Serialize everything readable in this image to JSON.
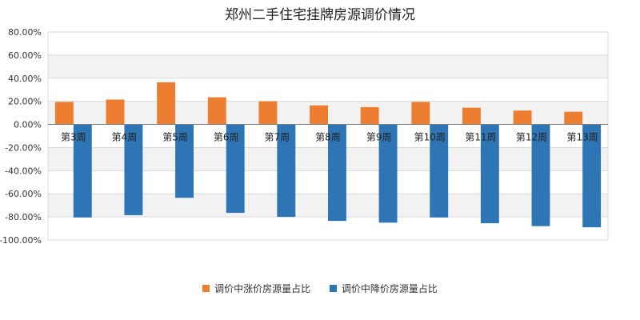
{
  "chart_data": {
    "type": "bar",
    "title": "郑州二手住宅挂牌房源调价情况",
    "categories": [
      "第3周",
      "第4周",
      "第5周",
      "第6周",
      "第7周",
      "第8周",
      "第9周",
      "第10周",
      "第11周",
      "第12周",
      "第13周"
    ],
    "series": [
      {
        "name": "调价中涨价房源量占比",
        "color": "#ED7D31",
        "values": [
          19.5,
          21.5,
          36.5,
          23.5,
          20.0,
          16.5,
          15.0,
          19.5,
          14.5,
          12.0,
          11.0
        ]
      },
      {
        "name": "调价中降价房源量占比",
        "color": "#2E75B6",
        "values": [
          -80.5,
          -78.5,
          -63.5,
          -76.5,
          -80.0,
          -83.5,
          -85.0,
          -80.5,
          -85.5,
          -88.0,
          -89.0
        ]
      }
    ],
    "ylim": [
      -100,
      80
    ],
    "yticks": [
      80,
      60,
      40,
      20,
      0,
      -20,
      -40,
      -60,
      -80,
      -100
    ],
    "ytick_labels": [
      "80.00%",
      "60.00%",
      "40.00%",
      "20.00%",
      "0.00%",
      "-20.00%",
      "-40.00%",
      "-60.00%",
      "-80.00%",
      "-100.00%"
    ],
    "xlabel": "",
    "ylabel": "",
    "grid": true,
    "legend_position": "bottom"
  }
}
